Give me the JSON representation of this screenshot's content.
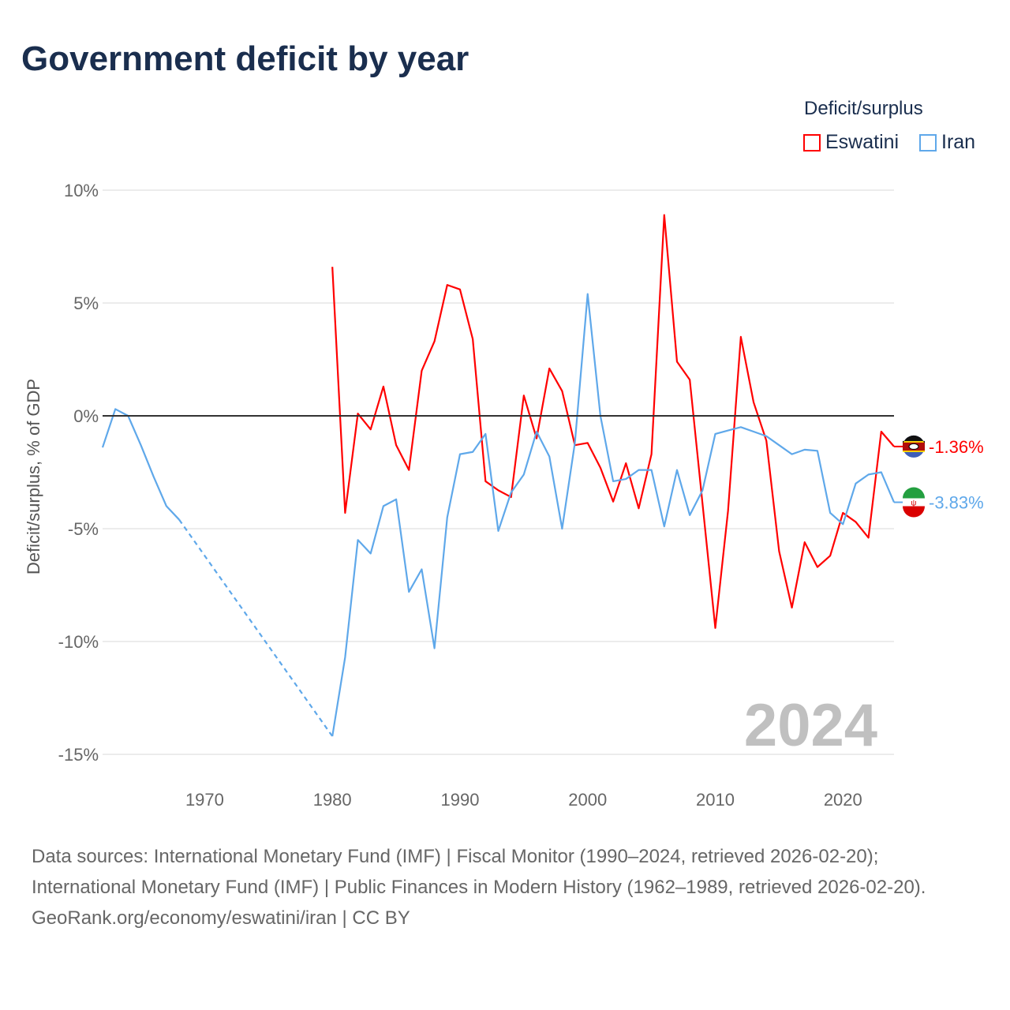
{
  "title": "Government deficit by year",
  "legend": {
    "title": "Deficit/surplus",
    "items": [
      {
        "name": "Eswatini",
        "color": "#ff0000"
      },
      {
        "name": "Iran",
        "color": "#5fa8ea"
      }
    ]
  },
  "source": {
    "line1": "Data sources: International Monetary Fund (IMF) | Fiscal Monitor (1990–2024, retrieved 2026-02-20); International Monetary Fund (IMF) | Public Finances in Modern History (1962–1989, retrieved 2026-02-20).",
    "line2": "GeoRank.org/economy/eswatini/iran | CC BY"
  },
  "chart_data": {
    "type": "line",
    "title": "Government deficit by year",
    "ylabel": "Deficit/surplus, % of GDP",
    "xlabel": "",
    "xlim": [
      1962,
      2024
    ],
    "ylim": [
      -15,
      10
    ],
    "yticks": [
      {
        "v": 10,
        "label": "10%"
      },
      {
        "v": 5,
        "label": "5%"
      },
      {
        "v": 0,
        "label": "0%"
      },
      {
        "v": -5,
        "label": "-5%"
      },
      {
        "v": -10,
        "label": "-10%"
      },
      {
        "v": -15,
        "label": "-15%"
      }
    ],
    "xticks": [
      1970,
      1980,
      1990,
      2000,
      2010,
      2020
    ],
    "year_label": "2024",
    "series": [
      {
        "name": "Eswatini",
        "color": "#ff0000",
        "end_label": "-1.36%",
        "x": [
          1980,
          1981,
          1982,
          1983,
          1984,
          1985,
          1986,
          1987,
          1988,
          1989,
          1990,
          1991,
          1992,
          1993,
          1994,
          1995,
          1996,
          1997,
          1998,
          1999,
          2000,
          2001,
          2002,
          2003,
          2004,
          2005,
          2006,
          2007,
          2008,
          2009,
          2010,
          2011,
          2012,
          2013,
          2014,
          2015,
          2016,
          2017,
          2018,
          2019,
          2020,
          2021,
          2022,
          2023,
          2024
        ],
        "values": [
          6.6,
          -4.3,
          0.1,
          -0.6,
          1.3,
          -1.3,
          -2.4,
          2.0,
          3.3,
          5.8,
          5.6,
          3.4,
          -2.9,
          -3.3,
          -3.6,
          0.9,
          -1.0,
          2.1,
          1.1,
          -1.3,
          -1.2,
          -2.3,
          -3.8,
          -2.1,
          -4.1,
          -1.7,
          8.9,
          2.4,
          1.6,
          -3.9,
          -9.4,
          -4.2,
          3.5,
          0.6,
          -1.1,
          -6.0,
          -8.5,
          -5.6,
          -6.7,
          -6.2,
          -4.3,
          -4.7,
          -5.4,
          -0.7,
          -1.36
        ]
      },
      {
        "name": "Iran",
        "color": "#5fa8ea",
        "end_label": "-3.83%",
        "gap": [
          1968,
          1980
        ],
        "x": [
          1962,
          1963,
          1964,
          1965,
          1966,
          1967,
          1968,
          1980,
          1981,
          1982,
          1983,
          1984,
          1985,
          1986,
          1987,
          1988,
          1989,
          1990,
          1991,
          1992,
          1993,
          1994,
          1995,
          1996,
          1997,
          1998,
          1999,
          2000,
          2001,
          2002,
          2003,
          2004,
          2005,
          2006,
          2007,
          2008,
          2009,
          2010,
          2011,
          2012,
          2013,
          2014,
          2015,
          2016,
          2017,
          2018,
          2019,
          2020,
          2021,
          2022,
          2023,
          2024
        ],
        "values": [
          -1.4,
          0.3,
          0.0,
          -1.3,
          -2.7,
          -4.0,
          -4.6,
          -14.2,
          -10.7,
          -5.5,
          -6.1,
          -4.0,
          -3.7,
          -7.8,
          -6.8,
          -10.3,
          -4.5,
          -1.7,
          -1.6,
          -0.8,
          -5.1,
          -3.4,
          -2.6,
          -0.7,
          -1.8,
          -5.0,
          -1.2,
          5.4,
          0.0,
          -2.9,
          -2.8,
          -2.4,
          -2.4,
          -4.9,
          -2.4,
          -4.4,
          -3.3,
          -0.8,
          -0.65,
          -0.5,
          -0.7,
          -0.9,
          -1.3,
          -1.7,
          -1.5,
          -1.55,
          -4.3,
          -4.8,
          -3.0,
          -2.6,
          -2.5,
          -3.83
        ]
      }
    ]
  }
}
